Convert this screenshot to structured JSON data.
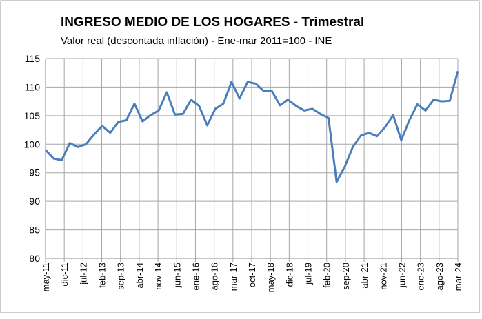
{
  "chart_data": {
    "type": "line",
    "title": "INGRESO MEDIO DE LOS HOGARES - Trimestral",
    "subtitle": "Valor real (descontada inflación) - Ene-mar 2011=100  - INE",
    "x_tick_labels": [
      "may-11",
      "dic-11",
      "jul-12",
      "feb-13",
      "sep-13",
      "abr-14",
      "nov-14",
      "jun-15",
      "ene-16",
      "ago-16",
      "mar-17",
      "oct-17",
      "may-18",
      "dic-18",
      "jul-19",
      "feb-20",
      "sep-20",
      "abr-21",
      "nov-21",
      "jun-22",
      "ene-23",
      "ago-23",
      "mar-24"
    ],
    "series": [
      {
        "color": "#4a7ebb",
        "values": [
          99.0,
          97.5,
          97.2,
          100.2,
          99.5,
          100.0,
          101.7,
          103.2,
          102.0,
          103.9,
          104.2,
          107.1,
          104.0,
          105.1,
          105.9,
          109.1,
          105.2,
          105.3,
          107.8,
          106.7,
          103.3,
          106.2,
          107.1,
          110.9,
          108.0,
          110.9,
          110.6,
          109.3,
          109.3,
          106.8,
          107.8,
          106.7,
          105.9,
          106.2,
          105.3,
          104.6,
          93.4,
          96.0,
          99.5,
          101.5,
          102.0,
          101.4,
          103.0,
          105.1,
          100.7,
          104.2,
          107.0,
          105.9,
          107.8,
          107.5,
          107.6,
          112.8
        ]
      }
    ],
    "ylim": [
      80,
      115
    ],
    "yticks": [
      80,
      85,
      90,
      95,
      100,
      105,
      110,
      115
    ],
    "grid": true
  }
}
